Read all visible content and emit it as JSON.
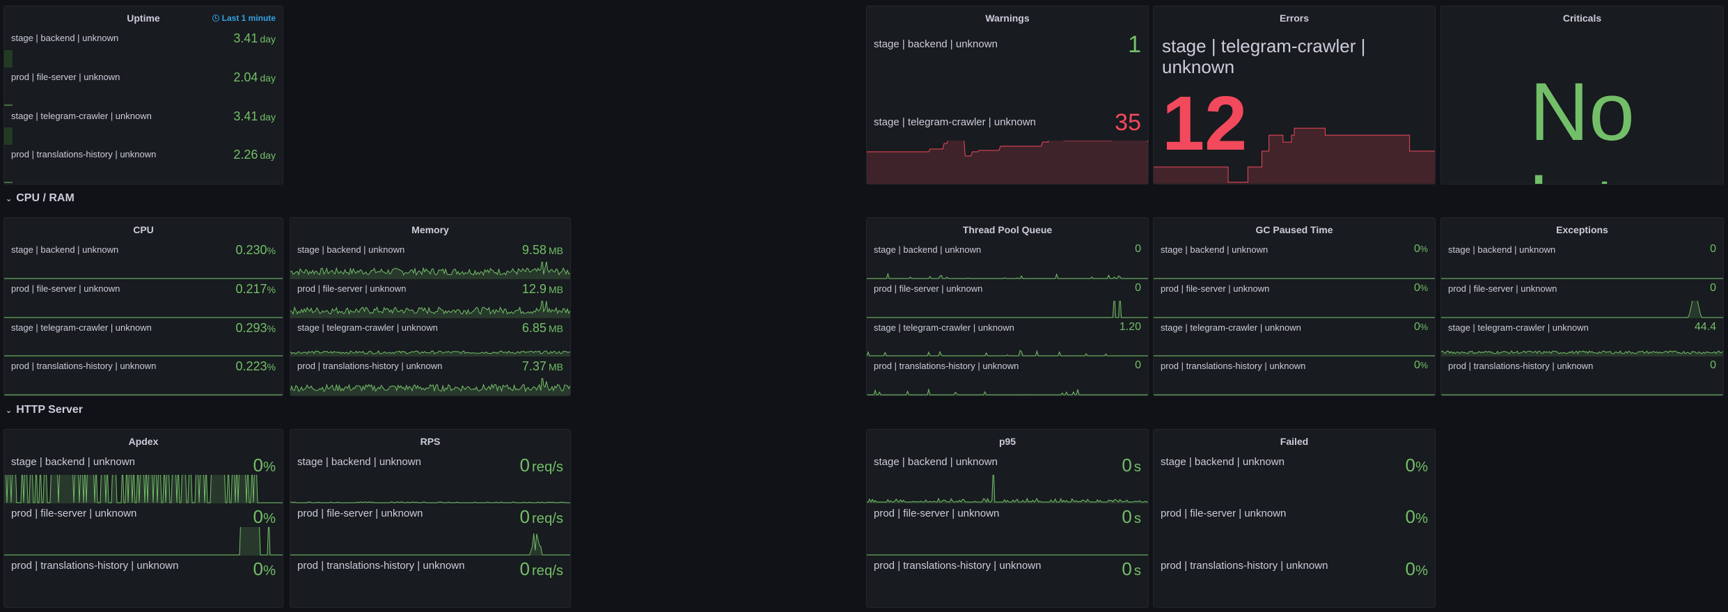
{
  "colors": {
    "green": "#73bf69",
    "red": "#f2495c",
    "blue": "#33a2e5"
  },
  "sections": {
    "cpu_ram": "CPU / RAM",
    "http_server": "HTTP Server"
  },
  "panels": {
    "uptime": {
      "title": "Uptime",
      "time_badge": "Last 1 minute",
      "items": [
        {
          "label": "stage | backend | unknown",
          "value": "3.41",
          "unit": "day"
        },
        {
          "label": "prod | file-server | unknown",
          "value": "2.04",
          "unit": "day"
        },
        {
          "label": "stage | telegram-crawler | unknown",
          "value": "3.41",
          "unit": "day"
        },
        {
          "label": "prod | translations-history | unknown",
          "value": "2.26",
          "unit": "day"
        }
      ]
    },
    "warnings": {
      "title": "Warnings",
      "items": [
        {
          "label": "stage | backend | unknown",
          "value": "1",
          "unit": ""
        },
        {
          "label": "stage | telegram-crawler | unknown",
          "value": "35",
          "unit": ""
        }
      ]
    },
    "errors": {
      "title": "Errors",
      "items": [
        {
          "label": "stage | telegram-crawler | unknown",
          "value": "12",
          "unit": ""
        }
      ]
    },
    "criticals": {
      "title": "Criticals",
      "no_data": "No data"
    },
    "cpu": {
      "title": "CPU",
      "items": [
        {
          "label": "stage | backend | unknown",
          "value": "0.230",
          "unit": "%"
        },
        {
          "label": "prod | file-server | unknown",
          "value": "0.217",
          "unit": "%"
        },
        {
          "label": "stage | telegram-crawler | unknown",
          "value": "0.293",
          "unit": "%"
        },
        {
          "label": "prod | translations-history | unknown",
          "value": "0.223",
          "unit": "%"
        }
      ]
    },
    "memory": {
      "title": "Memory",
      "items": [
        {
          "label": "stage | backend | unknown",
          "value": "9.58",
          "unit": "MB"
        },
        {
          "label": "prod | file-server | unknown",
          "value": "12.9",
          "unit": "MB"
        },
        {
          "label": "stage | telegram-crawler | unknown",
          "value": "6.85",
          "unit": "MB"
        },
        {
          "label": "prod | translations-history | unknown",
          "value": "7.37",
          "unit": "MB"
        }
      ]
    },
    "thread_pool": {
      "title": "Thread Pool Queue",
      "items": [
        {
          "label": "stage | backend | unknown",
          "value": "0",
          "unit": ""
        },
        {
          "label": "prod | file-server | unknown",
          "value": "0",
          "unit": ""
        },
        {
          "label": "stage | telegram-crawler | unknown",
          "value": "1.20",
          "unit": ""
        },
        {
          "label": "prod | translations-history | unknown",
          "value": "0",
          "unit": ""
        }
      ]
    },
    "gc": {
      "title": "GC Paused Time",
      "items": [
        {
          "label": "stage | backend | unknown",
          "value": "0",
          "unit": "%"
        },
        {
          "label": "prod | file-server | unknown",
          "value": "0",
          "unit": "%"
        },
        {
          "label": "stage | telegram-crawler | unknown",
          "value": "0",
          "unit": "%"
        },
        {
          "label": "prod | translations-history | unknown",
          "value": "0",
          "unit": "%"
        }
      ]
    },
    "exceptions": {
      "title": "Exceptions",
      "items": [
        {
          "label": "stage | backend | unknown",
          "value": "0",
          "unit": ""
        },
        {
          "label": "prod | file-server | unknown",
          "value": "0",
          "unit": ""
        },
        {
          "label": "stage | telegram-crawler | unknown",
          "value": "44.4",
          "unit": ""
        },
        {
          "label": "prod | translations-history | unknown",
          "value": "0",
          "unit": ""
        }
      ]
    },
    "apdex": {
      "title": "Apdex",
      "items": [
        {
          "label": "stage | backend | unknown",
          "value": "0",
          "unit": "%"
        },
        {
          "label": "prod | file-server | unknown",
          "value": "0",
          "unit": "%"
        },
        {
          "label": "prod | translations-history | unknown",
          "value": "0",
          "unit": "%"
        }
      ]
    },
    "rps": {
      "title": "RPS",
      "items": [
        {
          "label": "stage | backend | unknown",
          "value": "0",
          "unit": "req/s"
        },
        {
          "label": "prod | file-server | unknown",
          "value": "0",
          "unit": "req/s"
        },
        {
          "label": "prod | translations-history | unknown",
          "value": "0",
          "unit": "req/s"
        }
      ]
    },
    "p95": {
      "title": "p95",
      "items": [
        {
          "label": "stage | backend | unknown",
          "value": "0",
          "unit": "s"
        },
        {
          "label": "prod | file-server | unknown",
          "value": "0",
          "unit": "s"
        },
        {
          "label": "prod | translations-history | unknown",
          "value": "0",
          "unit": "s"
        }
      ]
    },
    "failed": {
      "title": "Failed",
      "items": [
        {
          "label": "stage | backend | unknown",
          "value": "0",
          "unit": "%"
        },
        {
          "label": "prod | file-server | unknown",
          "value": "0",
          "unit": "%"
        },
        {
          "label": "prod | translations-history | unknown",
          "value": "0",
          "unit": "%"
        }
      ]
    }
  }
}
